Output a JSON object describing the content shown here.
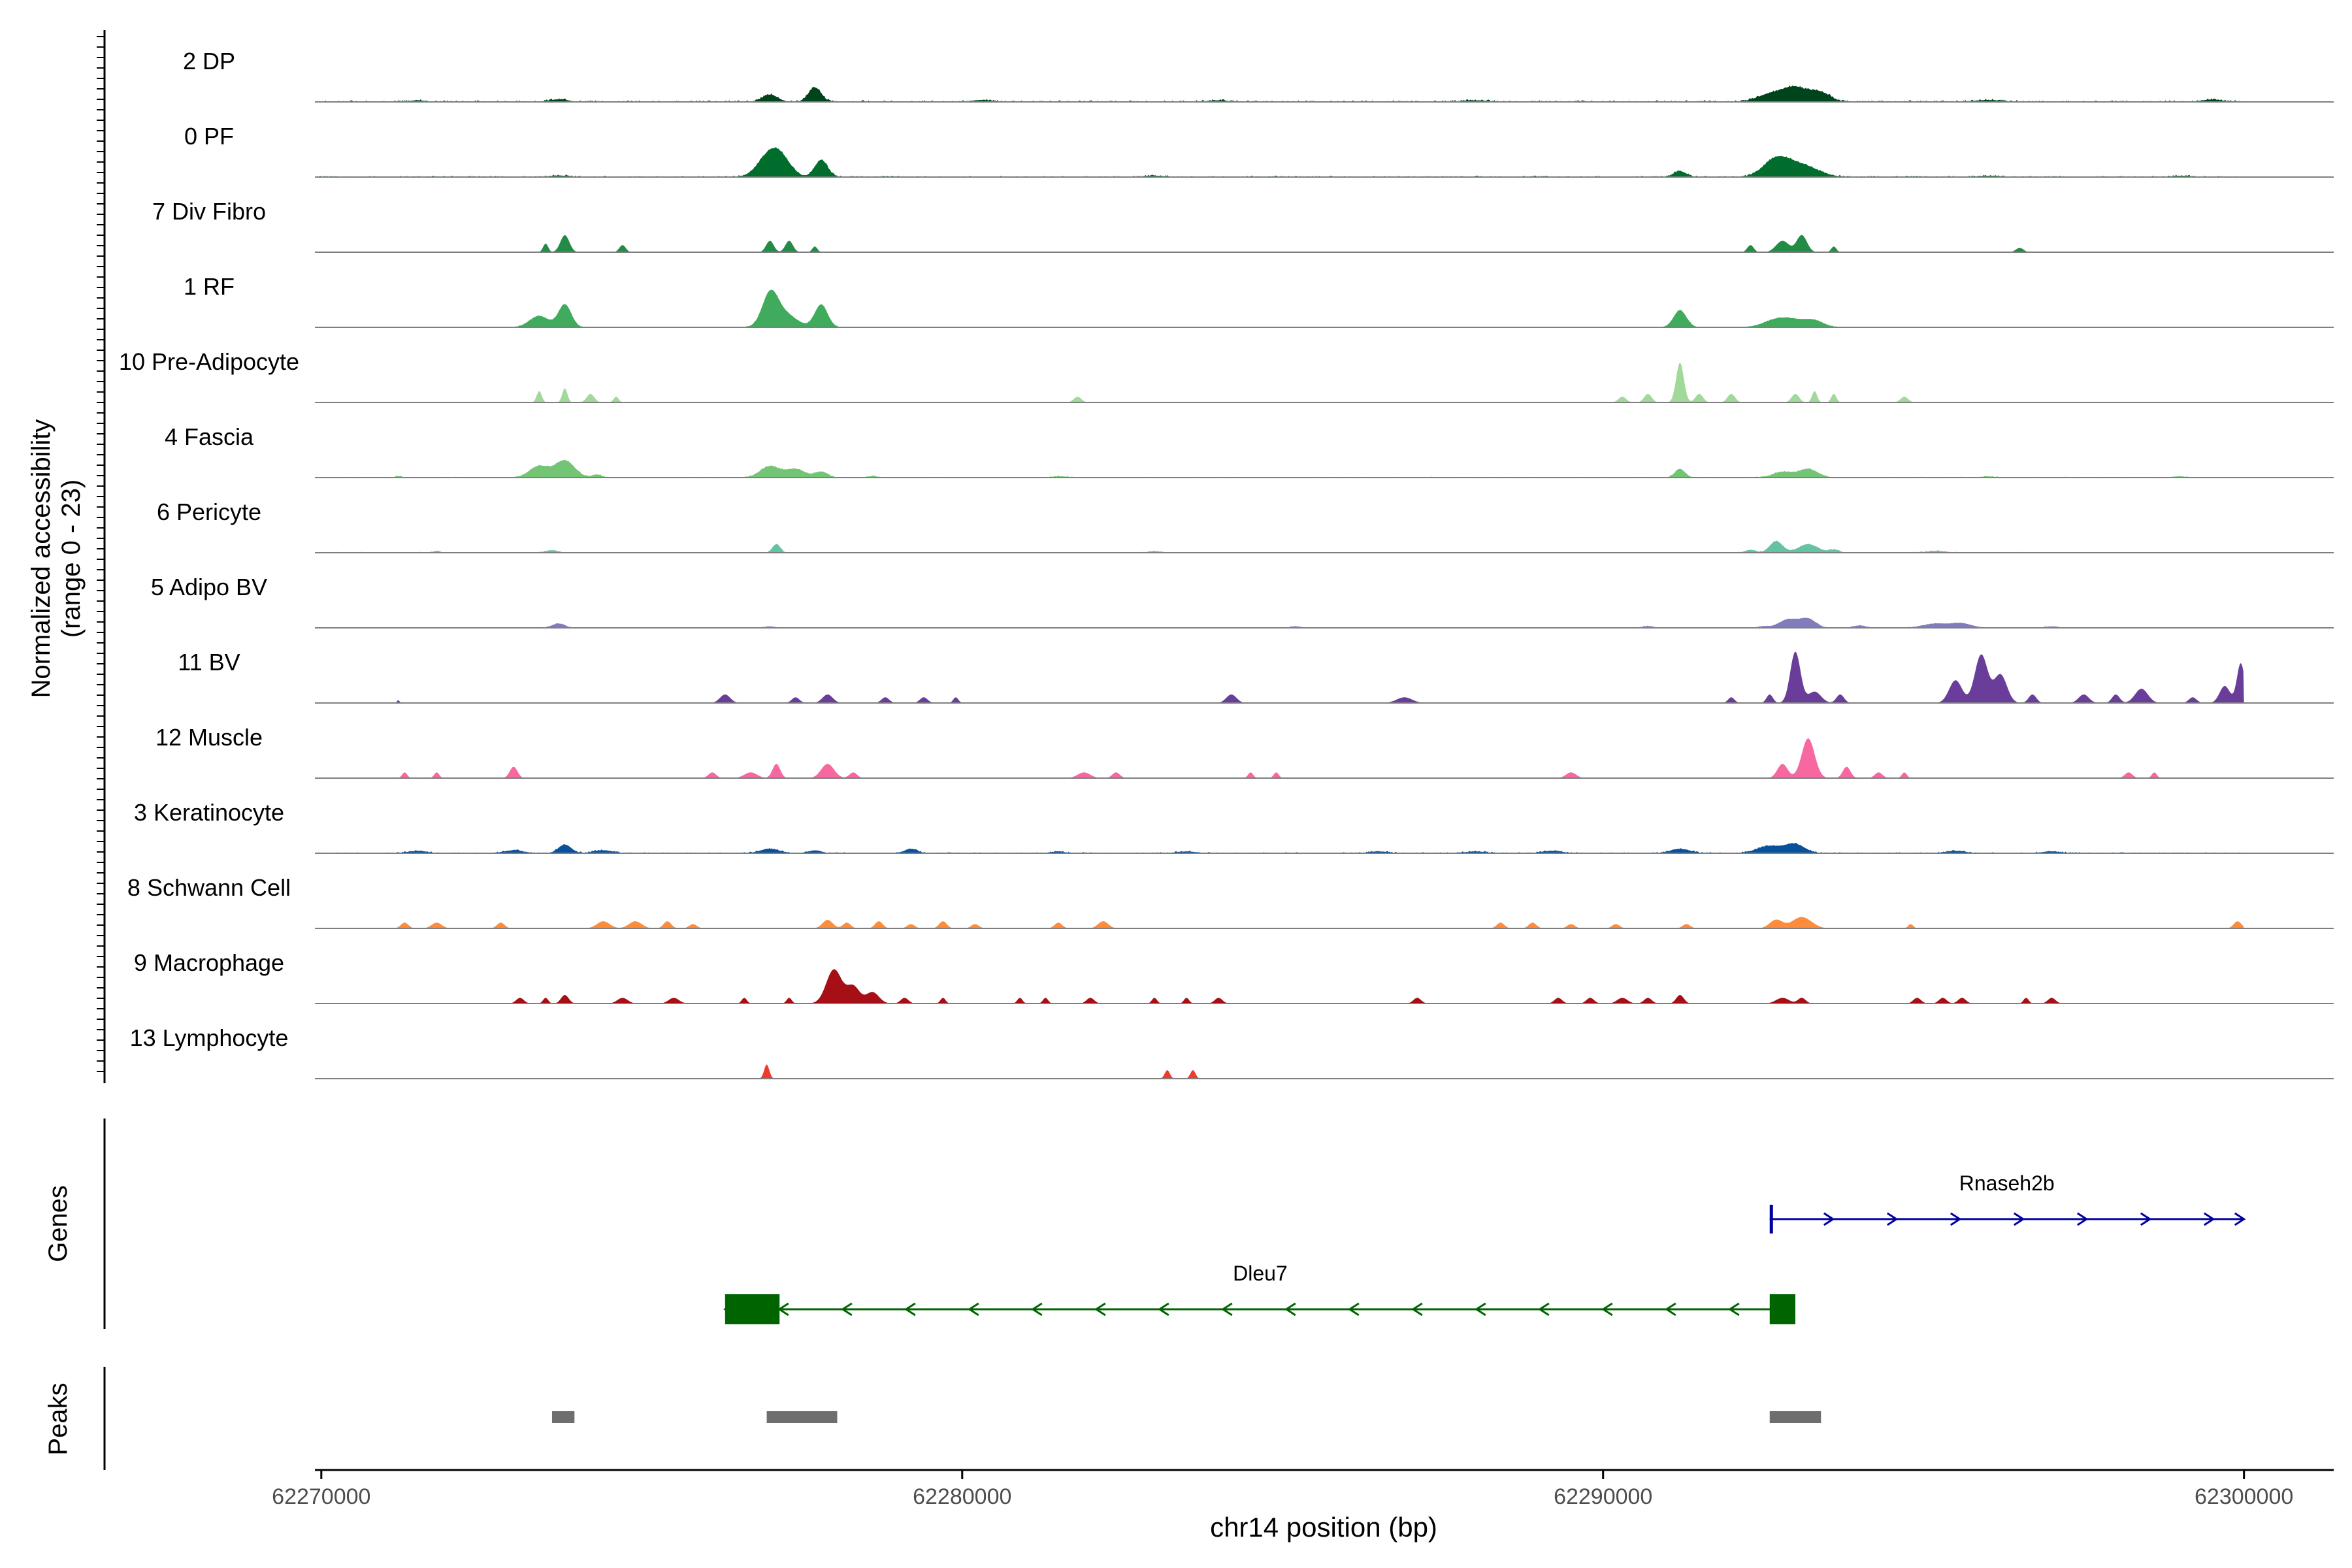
{
  "chart_data": {
    "type": "area",
    "ylabel_lines": [
      "Normalized accessibility",
      "(range 0 - 23)"
    ],
    "xlabel": "chr14 position (bp)",
    "xlim": [
      62269900,
      62301400
    ],
    "ylim": [
      0,
      23
    ],
    "x_ticks": [
      62270000,
      62280000,
      62290000,
      62300000
    ],
    "x_tick_labels": [
      "62270000",
      "62280000",
      "62290000",
      "62300000"
    ],
    "track_start": 62269900,
    "track_end": 62300000,
    "tracks": [
      {
        "name": "2 DP",
        "color": "#00441b",
        "noise": 0.6,
        "peaks": [
          [
            62271500,
            0.5,
            120
          ],
          [
            62273700,
            0.8,
            150
          ],
          [
            62277000,
            2.5,
            120
          ],
          [
            62277700,
            5,
            100
          ],
          [
            62280300,
            0.6,
            150
          ],
          [
            62284000,
            0.5,
            150
          ],
          [
            62288000,
            0.5,
            200
          ],
          [
            62292600,
            2.5,
            200
          ],
          [
            62293000,
            5,
            200
          ],
          [
            62293400,
            3,
            150
          ],
          [
            62296000,
            0.6,
            200
          ],
          [
            62299500,
            0.8,
            150
          ]
        ]
      },
      {
        "name": "0 PF",
        "color": "#006d2c",
        "noise": 0.5,
        "peaks": [
          [
            62273700,
            0.5,
            150
          ],
          [
            62277000,
            8,
            180
          ],
          [
            62277200,
            4,
            150
          ],
          [
            62277800,
            6,
            100
          ],
          [
            62283000,
            0.4,
            200
          ],
          [
            62291200,
            2,
            100
          ],
          [
            62292700,
            6,
            200
          ],
          [
            62293100,
            4,
            250
          ],
          [
            62296000,
            0.4,
            200
          ],
          [
            62299000,
            0.4,
            150
          ]
        ]
      },
      {
        "name": "7 Div Fibro",
        "color": "#238b45",
        "noise": 0,
        "peaks": [
          [
            62273500,
            3,
            40
          ],
          [
            62273800,
            6,
            70
          ],
          [
            62274700,
            2.5,
            50
          ],
          [
            62277000,
            4,
            60
          ],
          [
            62277300,
            4,
            60
          ],
          [
            62277700,
            2,
            40
          ],
          [
            62292300,
            2.5,
            50
          ],
          [
            62292800,
            4,
            100
          ],
          [
            62293100,
            6,
            80
          ],
          [
            62293600,
            2,
            40
          ],
          [
            62296500,
            1.5,
            60
          ]
        ]
      },
      {
        "name": "1 RF",
        "color": "#41ab5d",
        "noise": 0.2,
        "peaks": [
          [
            62273400,
            4,
            150
          ],
          [
            62273800,
            8,
            100
          ],
          [
            62277000,
            10,
            120
          ],
          [
            62277200,
            5,
            200
          ],
          [
            62277800,
            8,
            100
          ],
          [
            62291200,
            6,
            100
          ],
          [
            62292700,
            2.5,
            200
          ],
          [
            62293000,
            2,
            200
          ],
          [
            62293300,
            2,
            150
          ]
        ]
      },
      {
        "name": "10 Pre-Adipocyte",
        "color": "#a1d99b",
        "noise": 0,
        "peaks": [
          [
            62273400,
            4,
            40
          ],
          [
            62273800,
            5,
            40
          ],
          [
            62274200,
            3,
            60
          ],
          [
            62274600,
            2,
            40
          ],
          [
            62281800,
            2,
            60
          ],
          [
            62290300,
            2,
            60
          ],
          [
            62290700,
            3,
            60
          ],
          [
            62291200,
            14,
            60
          ],
          [
            62291500,
            3,
            60
          ],
          [
            62292000,
            3,
            60
          ],
          [
            62293000,
            3,
            60
          ],
          [
            62293300,
            4,
            40
          ],
          [
            62293600,
            3,
            40
          ],
          [
            62294700,
            2,
            60
          ]
        ]
      },
      {
        "name": "4 Fascia",
        "color": "#74c476",
        "noise": 0.3,
        "peaks": [
          [
            62271200,
            0.5,
            50
          ],
          [
            62273400,
            4,
            150
          ],
          [
            62273800,
            6,
            150
          ],
          [
            62274300,
            1,
            80
          ],
          [
            62277000,
            4,
            150
          ],
          [
            62277400,
            3,
            150
          ],
          [
            62277800,
            2,
            100
          ],
          [
            62278600,
            0.5,
            80
          ],
          [
            62281500,
            0.4,
            100
          ],
          [
            62291200,
            3,
            80
          ],
          [
            62292800,
            2,
            150
          ],
          [
            62293200,
            3,
            150
          ],
          [
            62296000,
            0.4,
            100
          ],
          [
            62299000,
            0.4,
            80
          ]
        ]
      },
      {
        "name": "6 Pericyte",
        "color": "#66c2a4",
        "noise": 0.3,
        "peaks": [
          [
            62271800,
            0.6,
            50
          ],
          [
            62273600,
            0.8,
            100
          ],
          [
            62277100,
            3,
            60
          ],
          [
            62283000,
            0.5,
            100
          ],
          [
            62292300,
            1,
            80
          ],
          [
            62292700,
            4,
            100
          ],
          [
            62293200,
            3,
            150
          ],
          [
            62293600,
            1,
            80
          ],
          [
            62295200,
            0.6,
            150
          ]
        ]
      },
      {
        "name": "5 Adipo BV",
        "color": "#807dba",
        "noise": 0.2,
        "peaks": [
          [
            62273700,
            1.5,
            100
          ],
          [
            62277000,
            0.5,
            80
          ],
          [
            62285200,
            0.5,
            80
          ],
          [
            62290700,
            0.6,
            80
          ],
          [
            62292500,
            0.5,
            80
          ],
          [
            62292900,
            3,
            150
          ],
          [
            62293200,
            3,
            120
          ],
          [
            62294000,
            0.8,
            100
          ],
          [
            62295200,
            1.5,
            200
          ],
          [
            62295600,
            1.5,
            150
          ],
          [
            62297000,
            0.5,
            100
          ]
        ]
      },
      {
        "name": "11 BV",
        "color": "#6a3d9a",
        "noise": 0,
        "peaks": [
          [
            62271200,
            1,
            20
          ],
          [
            62276300,
            3,
            80
          ],
          [
            62277400,
            2,
            60
          ],
          [
            62277900,
            3,
            80
          ],
          [
            62278800,
            2,
            60
          ],
          [
            62279400,
            2,
            60
          ],
          [
            62279900,
            2,
            40
          ],
          [
            62284200,
            3,
            80
          ],
          [
            62286900,
            2,
            120
          ],
          [
            62292000,
            2,
            50
          ],
          [
            62292600,
            3,
            50
          ],
          [
            62293000,
            18,
            80
          ],
          [
            62293300,
            4,
            100
          ],
          [
            62293700,
            3,
            60
          ],
          [
            62295500,
            8,
            100
          ],
          [
            62295900,
            17,
            100
          ],
          [
            62296200,
            10,
            100
          ],
          [
            62296700,
            3,
            60
          ],
          [
            62297500,
            3,
            80
          ],
          [
            62298000,
            3,
            60
          ],
          [
            62298400,
            5,
            100
          ],
          [
            62299200,
            2,
            60
          ],
          [
            62299700,
            6,
            80
          ],
          [
            62299950,
            14,
            60
          ]
        ]
      },
      {
        "name": "12 Muscle",
        "color": "#f768a1",
        "noise": 0,
        "peaks": [
          [
            62271300,
            2,
            40
          ],
          [
            62271800,
            2,
            40
          ],
          [
            62273000,
            4,
            60
          ],
          [
            62276100,
            2,
            60
          ],
          [
            62276700,
            2,
            100
          ],
          [
            62277100,
            5,
            60
          ],
          [
            62277900,
            5,
            100
          ],
          [
            62278300,
            2,
            60
          ],
          [
            62281900,
            2,
            100
          ],
          [
            62282400,
            2,
            60
          ],
          [
            62284500,
            2,
            40
          ],
          [
            62284900,
            2,
            40
          ],
          [
            62289500,
            2,
            80
          ],
          [
            62292800,
            5,
            80
          ],
          [
            62293200,
            14,
            100
          ],
          [
            62293800,
            4,
            60
          ],
          [
            62294300,
            2,
            60
          ],
          [
            62294700,
            2,
            40
          ],
          [
            62298200,
            2,
            60
          ],
          [
            62298600,
            2,
            40
          ]
        ]
      },
      {
        "name": "3 Keratinocyte",
        "color": "#08519c",
        "noise": 0.4,
        "peaks": [
          [
            62271500,
            0.8,
            150
          ],
          [
            62273000,
            1,
            150
          ],
          [
            62273800,
            3,
            100
          ],
          [
            62274400,
            1,
            150
          ],
          [
            62277000,
            1.5,
            150
          ],
          [
            62277700,
            1,
            100
          ],
          [
            62279200,
            1.5,
            100
          ],
          [
            62281500,
            0.6,
            100
          ],
          [
            62283500,
            0.6,
            150
          ],
          [
            62286500,
            0.6,
            150
          ],
          [
            62288000,
            0.6,
            150
          ],
          [
            62289200,
            0.8,
            150
          ],
          [
            62291200,
            1.5,
            150
          ],
          [
            62292600,
            2.5,
            200
          ],
          [
            62293000,
            3,
            150
          ],
          [
            62295500,
            0.8,
            150
          ],
          [
            62297000,
            0.6,
            150
          ]
        ]
      },
      {
        "name": "8 Schwann Cell",
        "color": "#fd8d3c",
        "noise": 0,
        "peaks": [
          [
            62271300,
            2,
            60
          ],
          [
            62271800,
            2,
            80
          ],
          [
            62272800,
            2,
            60
          ],
          [
            62274400,
            2.5,
            100
          ],
          [
            62274900,
            2.5,
            100
          ],
          [
            62275400,
            2.5,
            60
          ],
          [
            62275800,
            1.5,
            60
          ],
          [
            62277900,
            3,
            80
          ],
          [
            62278200,
            2,
            60
          ],
          [
            62278700,
            2.5,
            60
          ],
          [
            62279200,
            1.5,
            60
          ],
          [
            62279700,
            2.5,
            60
          ],
          [
            62280200,
            1.5,
            60
          ],
          [
            62281500,
            2,
            60
          ],
          [
            62282200,
            2.5,
            80
          ],
          [
            62288400,
            2,
            60
          ],
          [
            62288900,
            2,
            60
          ],
          [
            62289500,
            1.5,
            60
          ],
          [
            62290200,
            1.5,
            60
          ],
          [
            62291300,
            1.5,
            60
          ],
          [
            62292700,
            3,
            100
          ],
          [
            62293100,
            4,
            150
          ],
          [
            62294800,
            1.5,
            40
          ],
          [
            62299900,
            2.5,
            60
          ]
        ]
      },
      {
        "name": "9 Macrophage",
        "color": "#a50f15",
        "noise": 0,
        "peaks": [
          [
            62273100,
            2,
            60
          ],
          [
            62273500,
            2,
            40
          ],
          [
            62273800,
            3,
            60
          ],
          [
            62274700,
            2,
            80
          ],
          [
            62275500,
            2,
            80
          ],
          [
            62276600,
            2,
            40
          ],
          [
            62277300,
            2,
            40
          ],
          [
            62278000,
            12,
            120
          ],
          [
            62278300,
            6,
            100
          ],
          [
            62278600,
            4,
            100
          ],
          [
            62279100,
            2,
            60
          ],
          [
            62279700,
            2,
            40
          ],
          [
            62280900,
            2,
            40
          ],
          [
            62281300,
            2,
            40
          ],
          [
            62282000,
            2,
            60
          ],
          [
            62283000,
            2,
            40
          ],
          [
            62283500,
            2,
            40
          ],
          [
            62284000,
            2,
            60
          ],
          [
            62287100,
            2,
            60
          ],
          [
            62289300,
            2,
            60
          ],
          [
            62289800,
            2,
            60
          ],
          [
            62290300,
            2,
            80
          ],
          [
            62290700,
            2,
            60
          ],
          [
            62291200,
            3,
            60
          ],
          [
            62292800,
            2,
            100
          ],
          [
            62293100,
            2,
            60
          ],
          [
            62294900,
            2,
            60
          ],
          [
            62295300,
            2,
            60
          ],
          [
            62295600,
            2,
            60
          ],
          [
            62296600,
            2,
            40
          ],
          [
            62297000,
            2,
            60
          ]
        ]
      },
      {
        "name": "13 Lymphocyte",
        "color": "#ef3b2c",
        "noise": 0,
        "peaks": [
          [
            62276950,
            5,
            40
          ],
          [
            62283200,
            3,
            40
          ],
          [
            62283600,
            3,
            40
          ]
        ]
      }
    ],
    "genes": [
      {
        "name": "Rnaseh2b",
        "start": 62292600,
        "end": 62300000,
        "strand": "+",
        "color": "#0000a0",
        "exons": [
          [
            62292600,
            62292650
          ]
        ]
      },
      {
        "name": "Dleu7",
        "start": 62276300,
        "end": 62293000,
        "strand": "-",
        "color": "#006400",
        "exons": [
          [
            62276300,
            62277150
          ],
          [
            62292600,
            62293000
          ]
        ]
      }
    ],
    "gene_panel_label": "Genes",
    "peaks_panel_label": "Peaks",
    "peak_regions": [
      [
        62273600,
        62273950
      ],
      [
        62276950,
        62278050
      ],
      [
        62292600,
        62293400
      ]
    ],
    "peak_color": "#6e6e6e"
  }
}
